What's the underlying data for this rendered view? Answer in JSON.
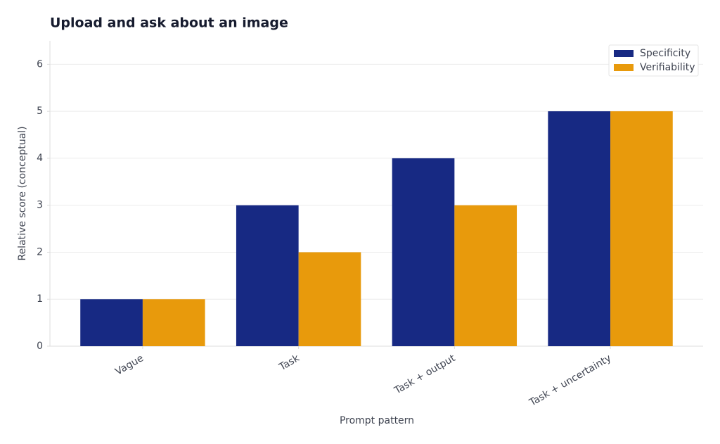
{
  "chart_data": {
    "type": "bar",
    "title": "Upload and ask about an image",
    "xlabel": "Prompt pattern",
    "ylabel": "Relative score (conceptual)",
    "categories": [
      "Vague",
      "Task",
      "Task + output",
      "Task + uncertainty"
    ],
    "series": [
      {
        "name": "Specificity",
        "color": "#172983",
        "values": [
          1,
          3,
          4,
          5
        ]
      },
      {
        "name": "Verifiability",
        "color": "#e89a0c",
        "values": [
          1,
          2,
          3,
          5
        ]
      }
    ],
    "ylim": [
      0,
      6.5
    ],
    "yticks": [
      0,
      1,
      2,
      3,
      4,
      5,
      6
    ],
    "grid": true,
    "legend": "upper right"
  }
}
